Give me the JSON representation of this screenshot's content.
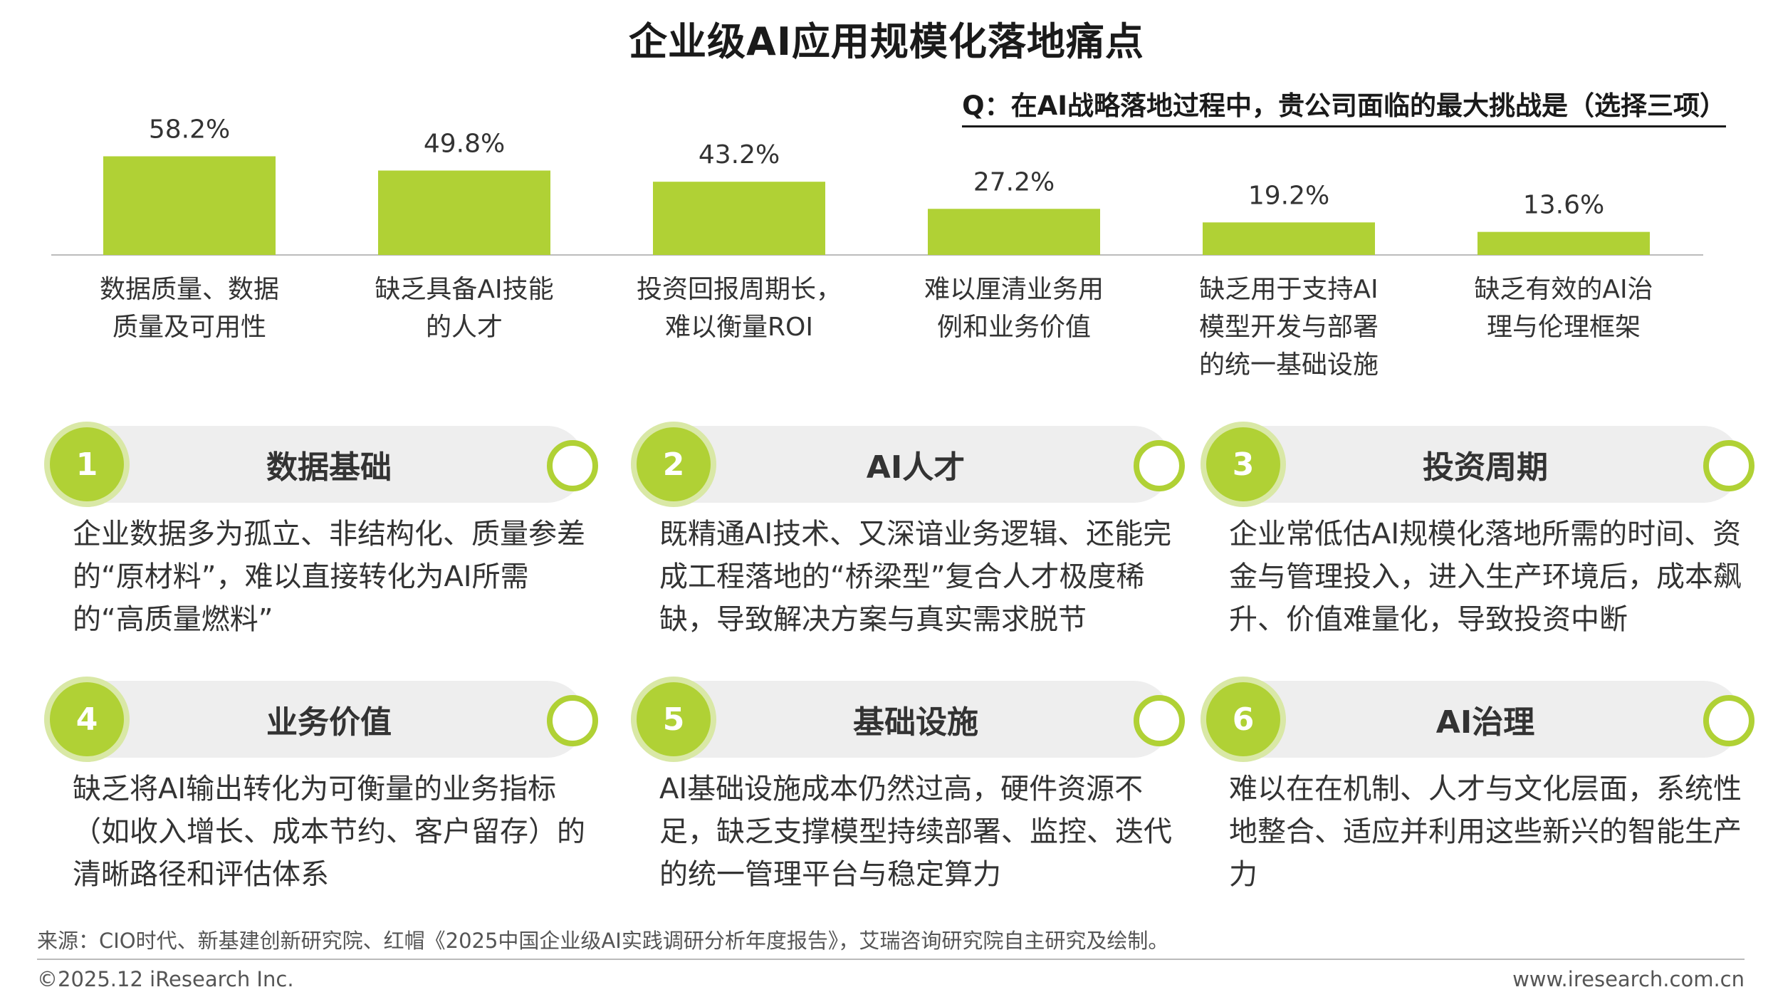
{
  "title": "企业级AI应用规模化落地痛点",
  "question": "Q：在AI战略落地过程中，贵公司面临的最大挑战是（选择三项）",
  "chart_data": {
    "type": "bar",
    "categories": [
      "数据质量、数据\n质量及可用性",
      "缺乏具备AI技能\n的人才",
      "投资回报周期长，\n难以衡量ROI",
      "难以厘清业务用\n例和业务价值",
      "缺乏用于支持AI\n模型开发与部署\n的统一基础设施",
      "缺乏有效的AI治\n理与伦理框架"
    ],
    "values": [
      58.2,
      49.8,
      43.2,
      27.2,
      19.2,
      13.6
    ],
    "value_labels": [
      "58.2%",
      "49.8%",
      "43.2%",
      "27.2%",
      "19.2%",
      "13.6%"
    ],
    "unit": "%",
    "ylim": [
      0,
      60
    ],
    "bar_color": "#b0d135",
    "grid": false
  },
  "cards": [
    {
      "num": "1",
      "title": "数据基础",
      "desc": "企业数据多为孤立、非结构化、质量参差的“原材料”，难以直接转化为AI所需的“高质量燃料”"
    },
    {
      "num": "2",
      "title": "AI人才",
      "desc": "既精通AI技术、又深谙业务逻辑、还能完成工程落地的“桥梁型”复合人才极度稀缺，导致解决方案与真实需求脱节"
    },
    {
      "num": "3",
      "title": "投资周期",
      "desc": "企业常低估AI规模化落地所需的时间、资金与管理投入，进入生产环境后，成本飙升、价值难量化，导致投资中断"
    },
    {
      "num": "4",
      "title": "业务价值",
      "desc": "缺乏将AI输出转化为可衡量的业务指标（如收入增长、成本节约、客户留存）的清晰路径和评估体系"
    },
    {
      "num": "5",
      "title": "基础设施",
      "desc": "AI基础设施成本仍然过高，硬件资源不足，缺乏支撑模型持续部署、监控、迭代的统一管理平台与稳定算力"
    },
    {
      "num": "6",
      "title": "AI治理",
      "desc": "难以在在机制、人才与文化层面，系统性地整合、适应并利用这些新兴的智能生产力"
    }
  ],
  "footer": {
    "source": "来源：CIO时代、新基建创新研究院、红帽《2025中国企业级AI实践调研分析年度报告》，艾瑞咨询研究院自主研究及绘制。",
    "copyright": "©2025.12 iResearch Inc.",
    "website": "www.iresearch.com.cn"
  }
}
